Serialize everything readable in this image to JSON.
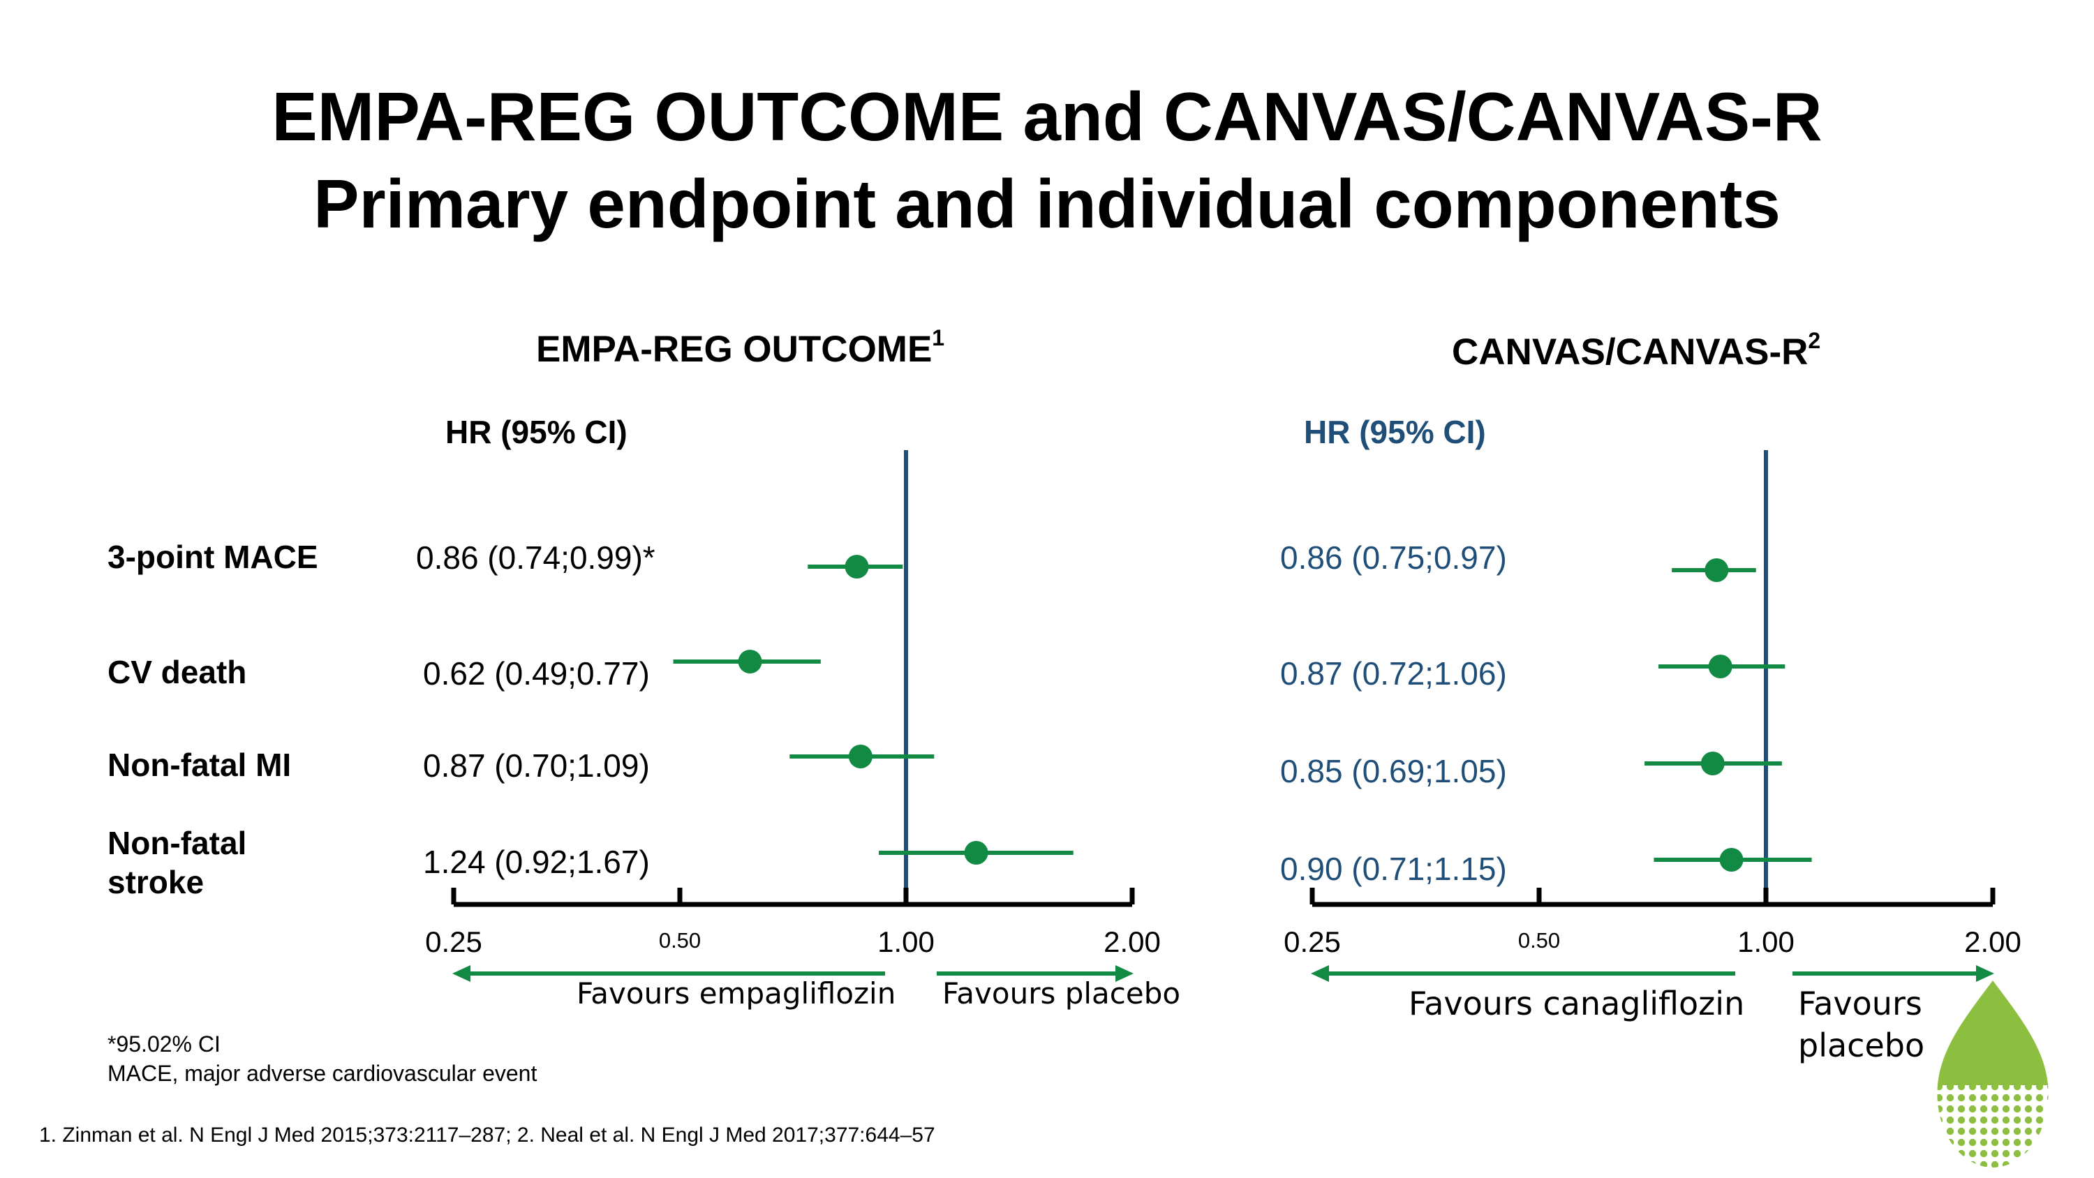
{
  "title_lines": [
    "EMPA-REG OUTCOME and CANVAS/CANVAS-R",
    "Primary endpoint and individual components"
  ],
  "footnotes": [
    "*95.02% CI",
    "MACE, major adverse cardiovascular event"
  ],
  "reference": "1. Zinman et al. N Engl J Med 2015;373:2117–287; 2. Neal et al. N Engl J Med 2017;377:644–57",
  "rows": [
    {
      "label": "3-point MACE"
    },
    {
      "label": "CV death"
    },
    {
      "label": "Non-fatal MI"
    },
    {
      "label": "Non-fatal stroke"
    }
  ],
  "colors": {
    "marker": "#138a43",
    "reference_line": "#1f4e79",
    "canvas_text": "#1f4e79",
    "leaf": "#8cbf3f"
  },
  "chart_data": [
    {
      "type": "scatter",
      "subtype": "forest",
      "title": "EMPA-REG OUTCOME",
      "title_sup": "1",
      "column_header": "HR (95% CI)",
      "x_scale": "log2",
      "xlim": [
        0.25,
        2.0
      ],
      "x_ticks": [
        "0.25",
        "0.50",
        "1.00",
        "2.00"
      ],
      "reference_x": 1.0,
      "favours_left": "Favours empagliflozin",
      "favours_right": "Favours placebo",
      "points": [
        {
          "label": "3-point MACE",
          "text": "0.86 (0.74;0.99)*",
          "hr": 0.86,
          "lo": 0.74,
          "hi": 0.99
        },
        {
          "label": "CV death",
          "text": "0.62 (0.49;0.77)",
          "hr": 0.62,
          "lo": 0.49,
          "hi": 0.77
        },
        {
          "label": "Non-fatal MI",
          "text": "0.87 (0.70;1.09)",
          "hr": 0.87,
          "lo": 0.7,
          "hi": 1.09
        },
        {
          "label": "Non-fatal stroke",
          "text": "1.24 (0.92;1.67)",
          "hr": 1.24,
          "lo": 0.92,
          "hi": 1.67
        }
      ]
    },
    {
      "type": "scatter",
      "subtype": "forest",
      "title": "CANVAS/CANVAS-R",
      "title_sup": "2",
      "column_header": "HR (95% CI)",
      "x_scale": "log2",
      "xlim": [
        0.25,
        2.0
      ],
      "x_ticks": [
        "0.25",
        "0.50",
        "1.00",
        "2.00"
      ],
      "reference_x": 1.0,
      "favours_left": "Favours canagliflozin",
      "favours_right": "Favours placebo",
      "points": [
        {
          "label": "3-point MACE",
          "text": "0.86 (0.75;0.97)",
          "hr": 0.86,
          "lo": 0.75,
          "hi": 0.97
        },
        {
          "label": "CV death",
          "text": "0.87 (0.72;1.06)",
          "hr": 0.87,
          "lo": 0.72,
          "hi": 1.06
        },
        {
          "label": "Non-fatal MI",
          "text": "0.85 (0.69;1.05)",
          "hr": 0.85,
          "lo": 0.69,
          "hi": 1.05
        },
        {
          "label": "Non-fatal stroke",
          "text": "0.90 (0.71;1.15)",
          "hr": 0.9,
          "lo": 0.71,
          "hi": 1.15
        }
      ]
    }
  ]
}
